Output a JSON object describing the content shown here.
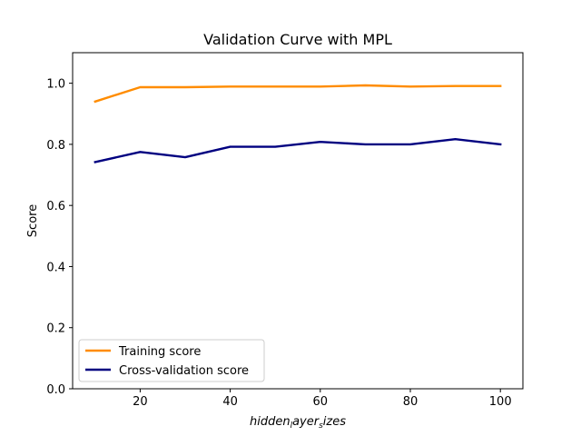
{
  "chart_data": {
    "type": "line",
    "title": "Validation Curve with MPL",
    "xlabel": {
      "parts": [
        {
          "text": "hidden",
          "sub": false
        },
        {
          "text": "l",
          "sub": true
        },
        {
          "text": "ayer",
          "sub": false
        },
        {
          "text": "s",
          "sub": true
        },
        {
          "text": "izes",
          "sub": false
        }
      ]
    },
    "ylabel": "Score",
    "x": [
      10,
      20,
      30,
      40,
      50,
      60,
      70,
      80,
      90,
      100
    ],
    "xlim": [
      5,
      105
    ],
    "ylim": [
      0.0,
      1.1
    ],
    "xticks": [
      20,
      40,
      60,
      80,
      100
    ],
    "xtick_labels": [
      "20",
      "40",
      "60",
      "80",
      "100"
    ],
    "yticks": [
      0.0,
      0.2,
      0.4,
      0.6,
      0.8,
      1.0
    ],
    "ytick_labels": [
      "0.0",
      "0.2",
      "0.4",
      "0.6",
      "0.8",
      "1.0"
    ],
    "grid": false,
    "legend_position": "bottom-left",
    "series": [
      {
        "name": "Training score",
        "color": "#ff8c00",
        "values": [
          0.94,
          0.987,
          0.987,
          0.989,
          0.989,
          0.989,
          0.993,
          0.989,
          0.991,
          0.991
        ]
      },
      {
        "name": "Cross-validation score",
        "color": "#000080",
        "values": [
          0.742,
          0.775,
          0.758,
          0.792,
          0.792,
          0.808,
          0.8,
          0.8,
          0.817,
          0.8
        ]
      }
    ]
  }
}
